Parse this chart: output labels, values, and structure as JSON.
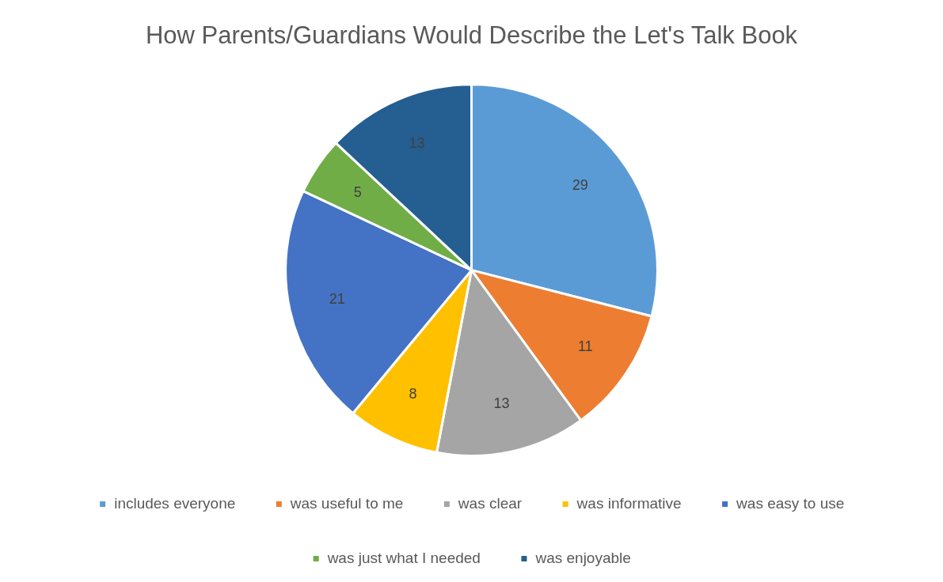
{
  "chart_data": {
    "type": "pie",
    "title": "How Parents/Guardians Would Describe the Let's Talk Book",
    "categories": [
      "includes everyone",
      "was useful to me",
      "was clear",
      "was informative",
      "was easy to use",
      "was just what I needed",
      "was enjoyable"
    ],
    "values": [
      29,
      11,
      13,
      8,
      21,
      5,
      13
    ],
    "colors": [
      "#5b9bd5",
      "#ed7d31",
      "#a5a5a5",
      "#ffc000",
      "#4472c4",
      "#70ad47",
      "#255e91"
    ],
    "data_labels": true,
    "legend": "bottom"
  }
}
